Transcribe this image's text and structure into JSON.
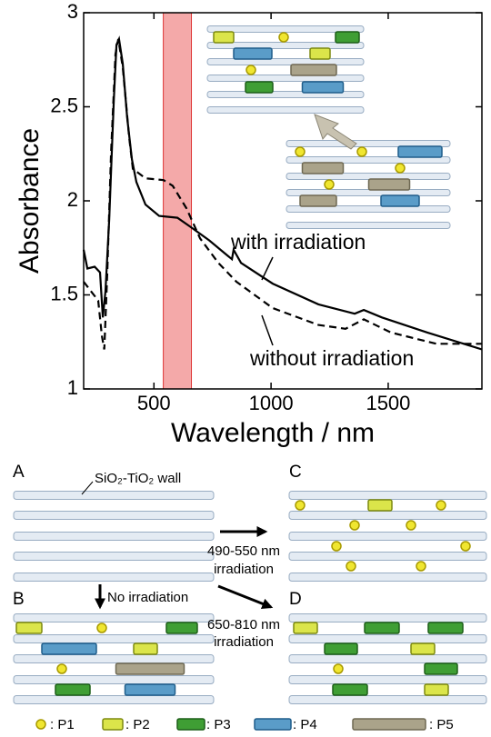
{
  "chart_data": {
    "type": "line",
    "y_label": "Absorbance",
    "x_label": "Wavelength / nm",
    "xlim": [
      200,
      1900
    ],
    "ylim": [
      1,
      3
    ],
    "xticks": [
      500,
      1000,
      1500
    ],
    "yticks": [
      1,
      1.5,
      2,
      2.5,
      3
    ],
    "highlight": {
      "range": [
        540,
        660
      ],
      "color": "#f4a9a9"
    },
    "annotations": [
      "with irradiation",
      "without irradiation"
    ],
    "series": [
      {
        "name": "with irradiation",
        "color": "#000",
        "dash": false,
        "x": [
          200,
          216,
          247,
          270,
          282,
          293,
          309,
          329,
          340,
          351,
          367,
          386,
          406,
          425,
          464,
          522,
          600,
          658,
          736,
          813,
          833,
          840,
          872,
          1007,
          1202,
          1357,
          1396,
          1473,
          1667,
          1900
        ],
        "values": [
          1.74,
          1.64,
          1.65,
          1.62,
          1.38,
          1.52,
          1.9,
          2.54,
          2.83,
          2.86,
          2.73,
          2.44,
          2.22,
          2.1,
          1.98,
          1.92,
          1.91,
          1.86,
          1.79,
          1.71,
          1.69,
          1.74,
          1.67,
          1.56,
          1.45,
          1.4,
          1.42,
          1.38,
          1.3,
          1.21
        ]
      },
      {
        "name": "without irradiation",
        "color": "#000",
        "dash": true,
        "x": [
          200,
          231,
          262,
          278,
          288,
          301,
          317,
          336,
          348,
          367,
          394,
          410,
          464,
          541,
          580,
          639,
          697,
          775,
          852,
          1007,
          1202,
          1318,
          1396,
          1512,
          1706,
          1900
        ],
        "values": [
          1.57,
          1.52,
          1.47,
          1.28,
          1.21,
          1.62,
          2.25,
          2.78,
          2.86,
          2.71,
          2.34,
          2.17,
          2.12,
          2.11,
          2.08,
          1.96,
          1.8,
          1.67,
          1.57,
          1.43,
          1.34,
          1.32,
          1.37,
          1.3,
          1.24,
          1.24
        ]
      }
    ]
  },
  "diagram": {
    "panels": [
      "A",
      "B",
      "C",
      "D"
    ],
    "wall_label": "SiO₂-TiO₂ wall",
    "no_irradiation": "No irradiation",
    "transitions": [
      {
        "wavelength": "490-550 nm",
        "text": "irradiation"
      },
      {
        "wavelength": "650-810 nm",
        "text": "irradiation"
      }
    ],
    "legend": [
      ": P1",
      ": P2",
      ": P3",
      ": P4",
      ": P5"
    ]
  }
}
